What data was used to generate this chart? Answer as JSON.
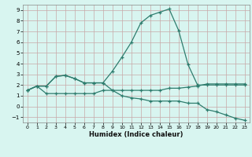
{
  "xlabel": "Humidex (Indice chaleur)",
  "bg_color": "#d8f5f0",
  "grid_color": "#c8a8a8",
  "line_color": "#2e7d6e",
  "xlim": [
    -0.5,
    23.5
  ],
  "ylim": [
    -1.5,
    9.5
  ],
  "xticks": [
    0,
    1,
    2,
    3,
    4,
    5,
    6,
    7,
    8,
    9,
    10,
    11,
    12,
    13,
    14,
    15,
    16,
    17,
    18,
    19,
    20,
    21,
    22,
    23
  ],
  "yticks": [
    -1,
    0,
    1,
    2,
    3,
    4,
    5,
    6,
    7,
    8,
    9
  ],
  "line1_x": [
    0,
    1,
    2,
    3,
    4,
    5,
    6,
    7,
    8,
    9,
    10,
    11,
    12,
    13,
    14,
    15,
    16,
    17,
    18,
    19,
    20,
    21,
    22,
    23
  ],
  "line1_y": [
    1.5,
    1.9,
    1.9,
    2.8,
    2.9,
    2.6,
    2.2,
    2.2,
    2.2,
    3.3,
    4.6,
    6.0,
    7.8,
    8.5,
    8.8,
    9.1,
    7.1,
    3.9,
    2.0,
    2.0,
    2.0,
    2.0,
    2.0,
    2.0
  ],
  "line2_x": [
    0,
    1,
    2,
    3,
    4,
    5,
    6,
    7,
    8,
    9,
    10,
    11,
    12,
    13,
    14,
    15,
    16,
    17,
    18,
    19,
    20,
    21,
    22,
    23
  ],
  "line2_y": [
    1.5,
    1.9,
    1.2,
    1.2,
    1.2,
    1.2,
    1.2,
    1.2,
    1.5,
    1.5,
    1.5,
    1.5,
    1.5,
    1.5,
    1.5,
    1.7,
    1.7,
    1.8,
    1.9,
    2.1,
    2.1,
    2.1,
    2.1,
    2.1
  ],
  "line3_x": [
    0,
    1,
    2,
    3,
    4,
    5,
    6,
    7,
    8,
    9,
    10,
    11,
    12,
    13,
    14,
    15,
    16,
    17,
    18,
    19,
    20,
    21,
    22,
    23
  ],
  "line3_y": [
    1.5,
    1.9,
    1.9,
    2.8,
    2.9,
    2.6,
    2.2,
    2.2,
    2.2,
    1.5,
    1.0,
    0.8,
    0.7,
    0.5,
    0.5,
    0.5,
    0.5,
    0.3,
    0.3,
    -0.3,
    -0.5,
    -0.8,
    -1.1,
    -1.3
  ]
}
